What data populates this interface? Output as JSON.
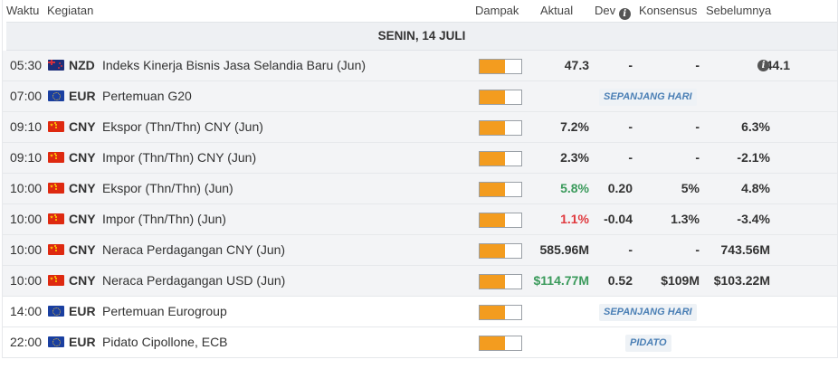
{
  "header": {
    "time": "Waktu",
    "event": "Kegiatan",
    "impact": "Dampak",
    "actual": "Aktual",
    "dev": "Dev",
    "consensus": "Konsensus",
    "previous": "Sebelumnya"
  },
  "date_label": "SENIN, 14 JULI",
  "colors": {
    "impact_fill": "#f39c1f",
    "positive": "#3a9a5b",
    "negative": "#e0393e",
    "badge_text": "#4a7fb5"
  },
  "rows": [
    {
      "time": "05:30",
      "flag": "new-zealand-flag-icon",
      "currency": "NZD",
      "event": "Indeks Kinerja Bisnis Jasa Selandia Baru (Jun)",
      "impact_level": 0.6,
      "actual": "47.3",
      "dev": "-",
      "consensus": "-",
      "previous": "44.1",
      "previous_info_icon": "info-icon"
    },
    {
      "time": "07:00",
      "flag": "eu-flag-icon",
      "currency": "EUR",
      "event": "Pertemuan G20",
      "impact_level": 0.6,
      "badge": "SEPANJANG HARI"
    },
    {
      "time": "09:10",
      "flag": "china-flag-icon",
      "currency": "CNY",
      "event": "Ekspor (Thn/Thn) CNY (Jun)",
      "impact_level": 0.6,
      "actual": "7.2%",
      "dev": "-",
      "consensus": "-",
      "previous": "6.3%"
    },
    {
      "time": "09:10",
      "flag": "china-flag-icon",
      "currency": "CNY",
      "event": "Impor (Thn/Thn) CNY (Jun)",
      "impact_level": 0.6,
      "actual": "2.3%",
      "dev": "-",
      "consensus": "-",
      "previous": "-2.1%"
    },
    {
      "time": "10:00",
      "flag": "china-flag-icon",
      "currency": "CNY",
      "event": "Ekspor (Thn/Thn) (Jun)",
      "impact_level": 0.6,
      "actual": "5.8%",
      "actual_status": "positive",
      "dev": "0.20",
      "consensus": "5%",
      "previous": "4.8%"
    },
    {
      "time": "10:00",
      "flag": "china-flag-icon",
      "currency": "CNY",
      "event": "Impor (Thn/Thn) (Jun)",
      "impact_level": 0.6,
      "actual": "1.1%",
      "actual_status": "negative",
      "dev": "-0.04",
      "consensus": "1.3%",
      "previous": "-3.4%"
    },
    {
      "time": "10:00",
      "flag": "china-flag-icon",
      "currency": "CNY",
      "event": "Neraca Perdagangan CNY (Jun)",
      "impact_level": 0.6,
      "actual": "585.96M",
      "dev": "-",
      "consensus": "-",
      "previous": "743.56M"
    },
    {
      "time": "10:00",
      "flag": "china-flag-icon",
      "currency": "CNY",
      "event": "Neraca Perdagangan USD (Jun)",
      "impact_level": 0.6,
      "actual": "$114.77M",
      "actual_status": "positive",
      "dev": "0.52",
      "consensus": "$109M",
      "previous": "$103.22M"
    },
    {
      "time": "14:00",
      "flag": "eu-flag-icon",
      "currency": "EUR",
      "event": "Pertemuan Eurogroup",
      "impact_level": 0.6,
      "badge": "SEPANJANG HARI"
    },
    {
      "time": "22:00",
      "flag": "eu-flag-icon",
      "currency": "EUR",
      "event": "Pidato Cipollone, ECB",
      "impact_level": 0.6,
      "badge": "PIDATO"
    }
  ]
}
